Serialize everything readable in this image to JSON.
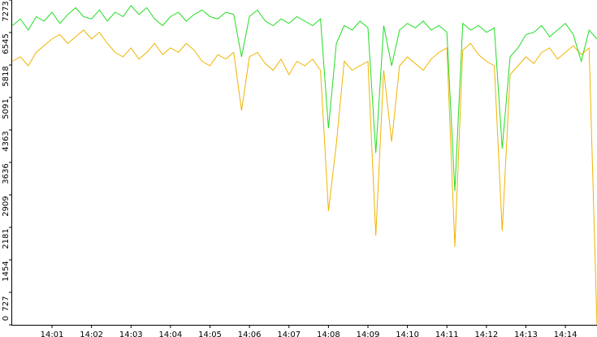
{
  "chart_data": {
    "type": "line",
    "x": [
      0,
      0.2,
      0.4,
      0.6,
      0.8,
      1,
      1.2,
      1.4,
      1.6,
      1.8,
      2,
      2.2,
      2.4,
      2.6,
      2.8,
      3,
      3.2,
      3.4,
      3.6,
      3.8,
      4,
      4.2,
      4.4,
      4.6,
      4.8,
      5,
      5.2,
      5.4,
      5.6,
      5.8,
      6,
      6.2,
      6.4,
      6.6,
      6.8,
      7,
      7.2,
      7.4,
      7.6,
      7.8,
      8,
      8.2,
      8.4,
      8.6,
      8.8,
      9,
      9.2,
      9.4,
      9.6,
      9.8,
      10,
      10.2,
      10.4,
      10.6,
      10.8,
      11,
      11.2,
      11.4,
      11.6,
      11.8,
      12,
      12.2,
      12.4,
      12.6,
      12.8,
      13,
      13.2,
      13.4,
      13.6,
      13.8,
      14,
      14.2,
      14.4,
      14.6,
      14.8
    ],
    "series": [
      {
        "color": "#22dd22",
        "values": [
          6700,
          6850,
          6600,
          6900,
          6800,
          7000,
          6750,
          6950,
          7100,
          6900,
          6850,
          7050,
          6800,
          7000,
          6900,
          7150,
          6950,
          7100,
          6850,
          6700,
          6900,
          7000,
          6800,
          6950,
          7050,
          6900,
          6850,
          7000,
          6950,
          6000,
          6900,
          7050,
          6800,
          6700,
          6850,
          6750,
          6900,
          6800,
          6700,
          6850,
          4400,
          6300,
          6700,
          6600,
          6800,
          6650,
          3850,
          6700,
          5800,
          6600,
          6750,
          6650,
          6800,
          6600,
          6700,
          6550,
          3000,
          6750,
          6600,
          6700,
          6550,
          6650,
          3950,
          6000,
          6200,
          6500,
          6550,
          6700,
          6450,
          6600,
          6750,
          6500,
          5900,
          6600,
          6400
        ]
      },
      {
        "color": "#f0b400",
        "values": [
          5900,
          6000,
          5800,
          6100,
          6250,
          6400,
          6500,
          6300,
          6450,
          6600,
          6400,
          6550,
          6300,
          6100,
          6000,
          6200,
          5950,
          6100,
          6300,
          6050,
          6200,
          6100,
          6300,
          6150,
          5900,
          5800,
          6050,
          5950,
          6100,
          4800,
          6000,
          6100,
          5850,
          5700,
          5950,
          5600,
          5900,
          5800,
          5950,
          5700,
          2550,
          4050,
          5900,
          5700,
          5800,
          5900,
          2000,
          5700,
          4100,
          5800,
          6000,
          5850,
          5700,
          5950,
          6100,
          6200,
          1750,
          6150,
          6300,
          6050,
          5900,
          5800,
          2100,
          5600,
          5800,
          6000,
          5850,
          6100,
          6200,
          5950,
          6100,
          6250,
          6050,
          6200,
          0
        ]
      }
    ],
    "xlim": [
      0,
      14.8
    ],
    "xticks": [
      {
        "value": 1,
        "label": "14:01"
      },
      {
        "value": 2,
        "label": "14:02"
      },
      {
        "value": 3,
        "label": "14:03"
      },
      {
        "value": 4,
        "label": "14:04"
      },
      {
        "value": 5,
        "label": "14:05"
      },
      {
        "value": 6,
        "label": "14:06"
      },
      {
        "value": 7,
        "label": "14:07"
      },
      {
        "value": 8,
        "label": "14:08"
      },
      {
        "value": 9,
        "label": "14:09"
      },
      {
        "value": 10,
        "label": "14:10"
      },
      {
        "value": 11,
        "label": "14:11"
      },
      {
        "value": 12,
        "label": "14:12"
      },
      {
        "value": 13,
        "label": "14:13"
      },
      {
        "value": 14,
        "label": "14:14"
      }
    ],
    "ylim": [
      0,
      7273
    ],
    "yticks": [
      0,
      727,
      1454,
      2181,
      2909,
      3636,
      4363,
      5091,
      5818,
      6545,
      7273
    ]
  }
}
